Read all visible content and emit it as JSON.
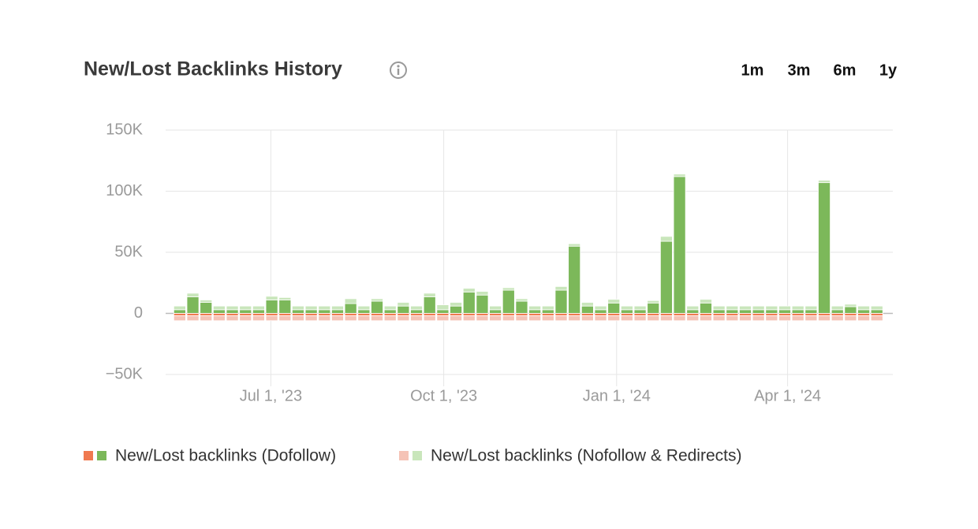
{
  "chart_data": {
    "type": "stacked-bar",
    "title": "New/Lost Backlinks History",
    "range_options": [
      "1m",
      "3m",
      "6m",
      "1y"
    ],
    "active_range": "1y",
    "x": [
      "2023-05-10",
      "2023-05-17",
      "2023-05-24",
      "2023-05-31",
      "2023-06-07",
      "2023-06-14",
      "2023-06-21",
      "2023-06-28",
      "2023-07-05",
      "2023-07-12",
      "2023-07-19",
      "2023-07-26",
      "2023-08-02",
      "2023-08-09",
      "2023-08-16",
      "2023-08-23",
      "2023-08-30",
      "2023-09-06",
      "2023-09-13",
      "2023-09-20",
      "2023-09-27",
      "2023-10-04",
      "2023-10-11",
      "2023-10-18",
      "2023-10-25",
      "2023-11-01",
      "2023-11-08",
      "2023-11-15",
      "2023-11-22",
      "2023-11-29",
      "2023-12-06",
      "2023-12-13",
      "2023-12-20",
      "2023-12-27",
      "2024-01-03",
      "2024-01-10",
      "2024-01-17",
      "2024-01-24",
      "2024-01-31",
      "2024-02-07",
      "2024-02-14",
      "2024-02-21",
      "2024-02-28",
      "2024-03-06",
      "2024-03-13",
      "2024-03-20",
      "2024-03-27",
      "2024-04-03",
      "2024-04-10",
      "2024-04-17",
      "2024-04-24",
      "2024-05-01",
      "2024-05-08",
      "2024-05-15"
    ],
    "xlim": [
      "2023-05-06",
      "2024-05-27"
    ],
    "xticks": [
      {
        "value": "2023-07-01",
        "label": "Jul 1, '23"
      },
      {
        "value": "2023-10-01",
        "label": "Oct 1, '23"
      },
      {
        "value": "2024-01-01",
        "label": "Jan 1, '24"
      },
      {
        "value": "2024-04-01",
        "label": "Apr 1, '24"
      }
    ],
    "ylim": [
      -50000,
      150000
    ],
    "yticks": [
      {
        "value": 150000,
        "label": "150K"
      },
      {
        "value": 100000,
        "label": "100K"
      },
      {
        "value": 50000,
        "label": "50K"
      },
      0,
      {
        "value": -50000,
        "label": "−50K"
      }
    ],
    "grid": true,
    "series": [
      {
        "name": "New/Lost backlinks (Dofollow)",
        "color": "#7cb85a",
        "lost_color": "#f0794f",
        "values": [
          3000,
          13500,
          9000,
          3000,
          3000,
          3000,
          3000,
          11000,
          11000,
          3000,
          3000,
          3000,
          3000,
          8000,
          3000,
          10000,
          3000,
          6000,
          3000,
          13500,
          3000,
          6000,
          17500,
          15000,
          3000,
          19000,
          10000,
          3000,
          3000,
          19000,
          55000,
          6000,
          3000,
          8500,
          3000,
          3000,
          8500,
          59000,
          112000,
          3000,
          8500,
          3000,
          3000,
          3000,
          3000,
          3000,
          3000,
          3000,
          3000,
          107000,
          3000,
          5500,
          3000,
          3000
        ],
        "lost_values": [
          -2000,
          -2000,
          -2000,
          -2000,
          -2000,
          -2000,
          -2000,
          -2000,
          -2000,
          -2000,
          -2000,
          -2000,
          -2000,
          -2000,
          -2000,
          -2000,
          -2000,
          -2000,
          -2000,
          -2000,
          -2000,
          -2000,
          -2000,
          -2000,
          -2000,
          -2000,
          -2000,
          -2000,
          -2000,
          -2000,
          -2000,
          -2000,
          -2000,
          -2000,
          -2000,
          -2000,
          -2000,
          -2000,
          -2000,
          -2000,
          -2000,
          -2000,
          -2000,
          -2000,
          -2000,
          -2000,
          -2000,
          -2000,
          -2000,
          -2000,
          -2000,
          -2000,
          -2000,
          -2000
        ]
      },
      {
        "name": "New/Lost backlinks (Nofollow & Redirects)",
        "color": "#c9e6bb",
        "lost_color": "#f5c3b6",
        "values": [
          3000,
          3000,
          2000,
          3000,
          3000,
          3000,
          3000,
          3000,
          2000,
          3000,
          3000,
          3000,
          3000,
          4000,
          3000,
          2000,
          3000,
          3000,
          3000,
          3000,
          4000,
          3000,
          3000,
          3000,
          3000,
          2000,
          2000,
          3000,
          3000,
          3000,
          2000,
          3000,
          3000,
          3000,
          3000,
          3000,
          2000,
          4000,
          2000,
          3000,
          3000,
          3000,
          3000,
          3000,
          3000,
          3000,
          3000,
          3000,
          3000,
          2000,
          3000,
          2000,
          3000,
          3000
        ],
        "lost_values": [
          -4000,
          -4000,
          -4000,
          -4000,
          -4000,
          -4000,
          -4000,
          -4000,
          -4000,
          -4000,
          -4000,
          -4000,
          -4000,
          -4000,
          -4000,
          -4000,
          -4000,
          -4000,
          -4000,
          -4000,
          -4000,
          -4000,
          -4000,
          -4000,
          -4000,
          -4000,
          -4000,
          -4000,
          -4000,
          -4000,
          -4000,
          -4000,
          -4000,
          -4000,
          -4000,
          -4000,
          -4000,
          -4000,
          -4000,
          -4000,
          -4000,
          -4000,
          -4000,
          -4000,
          -4000,
          -4000,
          -4000,
          -4000,
          -4000,
          -4000,
          -4000,
          -4000,
          -4000,
          -4000
        ]
      }
    ]
  }
}
